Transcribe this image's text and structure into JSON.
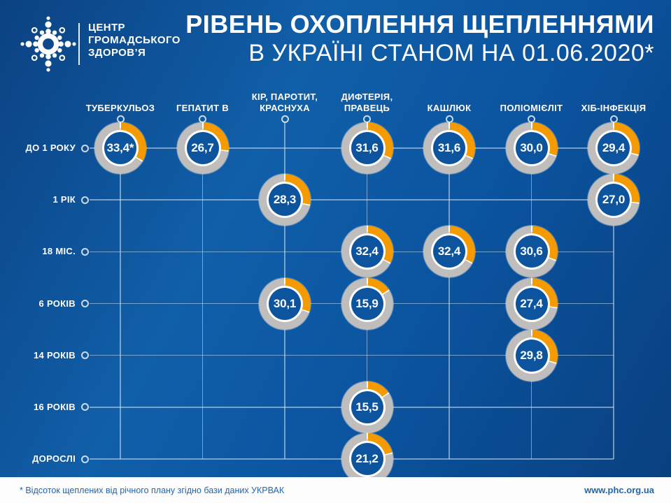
{
  "brand": {
    "logo": "phc-dots-logo",
    "name_line1": "ЦЕНТР",
    "name_line2": "ГРОМАДСЬКОГО",
    "name_line3": "ЗДОРОВ’Я"
  },
  "title": {
    "line1": "РІВЕНЬ ОХОПЛЕННЯ ЩЕПЛЕННЯМИ",
    "line2": "В УКРАЇНІ СТАНОМ НА 01.06.2020*"
  },
  "footer": {
    "note": "* Відсоток щеплених від річного плану згідно бази даних УКРВАК",
    "site": "www.phc.org.ua"
  },
  "colors": {
    "arc_orange": "#f59b00",
    "ring_gray": "#bfbebd",
    "donut_center_blue": "#0d549f",
    "background_light_blue": "#105fa9",
    "background_dark_blue": "#093f7e",
    "grid_line": "rgba(205,223,240,0.55)",
    "footer_text_blue": "#2166ae"
  },
  "chart_data": {
    "type": "table",
    "title": "РІВЕНЬ ОХОПЛЕННЯ ЩЕПЛЕННЯМИ В УКРАЇНІ СТАНОМ НА 01.06.2020*",
    "unit": "% (донут-індикатор, частка від 100%)",
    "legend": false,
    "grid": true,
    "columns": [
      "ТУБЕРКУЛЬОЗ",
      "ГЕПАТИТ В",
      "КІР, ПАРОТИТ,\nКРАСНУХА",
      "ДИФТЕРІЯ,\nПРАВЕЦЬ",
      "КАШЛЮК",
      "ПОЛІОМІЄЛІТ",
      "ХІБ-ІНФЕКЦІЯ"
    ],
    "rows": [
      "ДО 1 РОКУ",
      "1 РІК",
      "18 МІС.",
      "6 РОКІВ",
      "14 РОКІВ",
      "16 РОКІВ",
      "ДОРОСЛІ"
    ],
    "cells": [
      {
        "row": 0,
        "col": 0,
        "value": 33.4,
        "label": "33,4*"
      },
      {
        "row": 0,
        "col": 1,
        "value": 26.7,
        "label": "26,7"
      },
      {
        "row": 0,
        "col": 3,
        "value": 31.6,
        "label": "31,6"
      },
      {
        "row": 0,
        "col": 4,
        "value": 31.6,
        "label": "31,6"
      },
      {
        "row": 0,
        "col": 5,
        "value": 30.0,
        "label": "30,0"
      },
      {
        "row": 0,
        "col": 6,
        "value": 29.4,
        "label": "29,4"
      },
      {
        "row": 1,
        "col": 2,
        "value": 28.3,
        "label": "28,3"
      },
      {
        "row": 1,
        "col": 6,
        "value": 27.0,
        "label": "27,0"
      },
      {
        "row": 2,
        "col": 3,
        "value": 32.4,
        "label": "32,4"
      },
      {
        "row": 2,
        "col": 4,
        "value": 32.4,
        "label": "32,4"
      },
      {
        "row": 2,
        "col": 5,
        "value": 30.6,
        "label": "30,6"
      },
      {
        "row": 3,
        "col": 2,
        "value": 30.1,
        "label": "30,1"
      },
      {
        "row": 3,
        "col": 3,
        "value": 15.9,
        "label": "15,9"
      },
      {
        "row": 3,
        "col": 5,
        "value": 27.4,
        "label": "27,4"
      },
      {
        "row": 4,
        "col": 5,
        "value": 29.8,
        "label": "29,8"
      },
      {
        "row": 5,
        "col": 3,
        "value": 15.5,
        "label": "15,5"
      },
      {
        "row": 6,
        "col": 3,
        "value": 21.2,
        "label": "21,2"
      }
    ]
  }
}
